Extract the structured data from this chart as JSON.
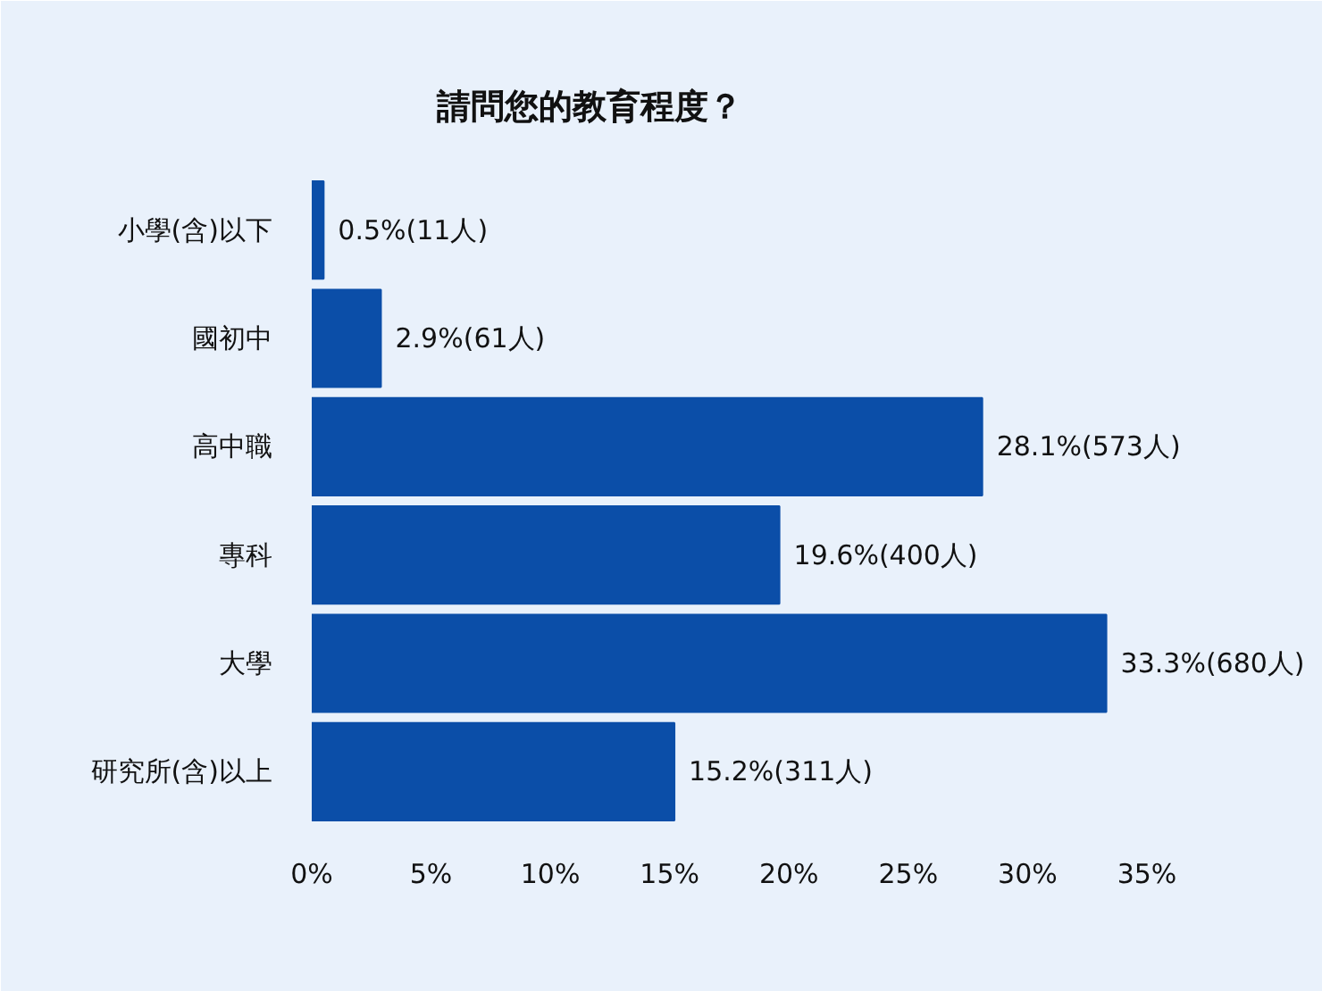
{
  "chart_data": {
    "type": "bar",
    "orientation": "horizontal",
    "title": "請問您的教育程度？",
    "categories": [
      "小學(含)以下",
      "國初中",
      "高中職",
      "專科",
      "大學",
      "研究所(含)以上"
    ],
    "values": [
      0.5,
      2.9,
      28.1,
      19.6,
      33.3,
      15.2
    ],
    "value_labels": [
      "0.5%(11人)",
      "2.9%(61人)",
      "28.1%(573人)",
      "19.6%(400人)",
      "33.3%(680人)",
      "15.2%(311人)"
    ],
    "color": "#0b4ea8",
    "xlim": [
      0,
      42
    ],
    "xticks": [
      {
        "value": 0,
        "label": "0%"
      },
      {
        "value": 5,
        "label": "5%"
      },
      {
        "value": 10,
        "label": "10%"
      },
      {
        "value": 15,
        "label": "15%"
      },
      {
        "value": 20,
        "label": "20%"
      },
      {
        "value": 25,
        "label": "25%"
      },
      {
        "value": 30,
        "label": "30%"
      },
      {
        "value": 35,
        "label": "35%"
      }
    ],
    "grid": false
  }
}
